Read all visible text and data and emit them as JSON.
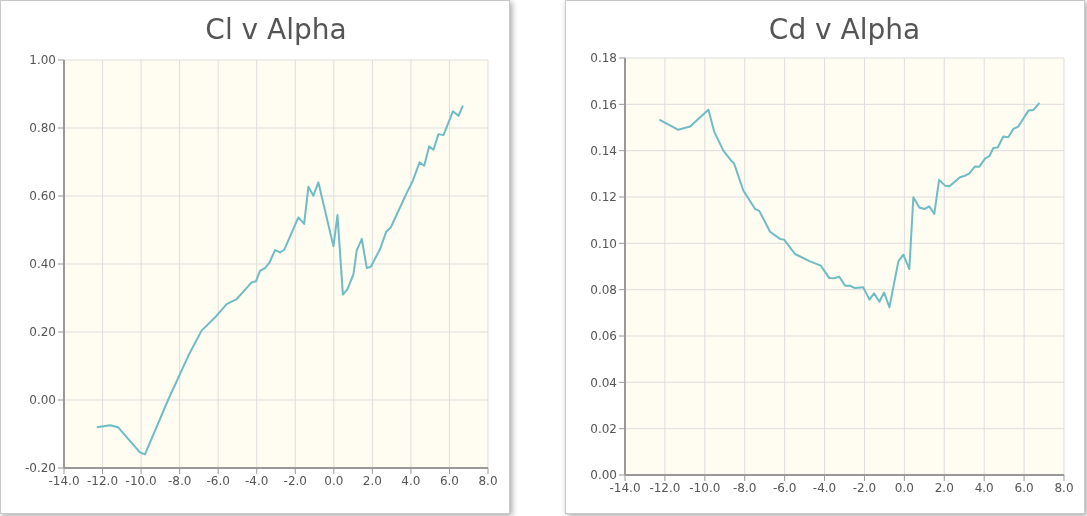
{
  "chart_data": [
    {
      "type": "line",
      "title": "Cl v Alpha",
      "color": "#6fbcc4",
      "marker": "none",
      "grid": true,
      "x": [
        -12.3,
        -11.6,
        -11.2,
        -10.06,
        -9.8,
        -8.6,
        -7.55,
        -6.86,
        -6.08,
        -5.56,
        -5.04,
        -4.26,
        -4.04,
        -3.83,
        -3.57,
        -3.35,
        -3.05,
        -2.79,
        -2.57,
        -1.84,
        -1.54,
        -1.32,
        -1.06,
        -0.8,
        -0.02,
        0.19,
        0.47,
        0.71,
        1.02,
        1.19,
        1.45,
        1.71,
        1.92,
        2.4,
        2.72,
        2.96,
        3.79,
        4.1,
        4.45,
        4.69,
        4.95,
        5.17,
        5.43,
        5.69,
        6.18,
        6.47,
        6.7
      ],
      "values": [
        -0.08,
        -0.074,
        -0.08,
        -0.154,
        -0.16,
        0.0,
        0.13,
        0.204,
        0.248,
        0.282,
        0.297,
        0.346,
        0.349,
        0.38,
        0.388,
        0.403,
        0.441,
        0.434,
        0.442,
        0.537,
        0.518,
        0.627,
        0.601,
        0.64,
        0.452,
        0.544,
        0.31,
        0.326,
        0.37,
        0.44,
        0.474,
        0.388,
        0.392,
        0.444,
        0.495,
        0.508,
        0.61,
        0.645,
        0.699,
        0.689,
        0.746,
        0.736,
        0.782,
        0.779,
        0.849,
        0.836,
        0.866
      ],
      "xlim": [
        -14,
        8
      ],
      "xticks": [
        {
          "value": -14,
          "label": "-14.0"
        },
        {
          "value": -12,
          "label": "-12.0"
        },
        {
          "value": -10,
          "label": "-10.0"
        },
        {
          "value": -8,
          "label": "-8.0"
        },
        {
          "value": -6,
          "label": "-6.0"
        },
        {
          "value": -4,
          "label": "-4.0"
        },
        {
          "value": -2,
          "label": "-2.0"
        },
        {
          "value": 0,
          "label": "0.0"
        },
        {
          "value": 2,
          "label": "2.0"
        },
        {
          "value": 4,
          "label": "4.0"
        },
        {
          "value": 6,
          "label": "6.0"
        },
        {
          "value": 8,
          "label": "8.0"
        }
      ],
      "ylim": [
        -0.2,
        1
      ],
      "yticks": [
        {
          "value": -0.2,
          "label": "-0.20"
        },
        {
          "value": 0,
          "label": "0.00"
        },
        {
          "value": 0.2,
          "label": "0.20"
        },
        {
          "value": 0.4,
          "label": "0.40"
        },
        {
          "value": 0.6,
          "label": "0.60"
        },
        {
          "value": 0.8,
          "label": "0.80"
        },
        {
          "value": 1,
          "label": "1.00"
        }
      ]
    },
    {
      "type": "line",
      "title": "Cd v Alpha",
      "color": "#6fbcc4",
      "marker": "none",
      "grid": true,
      "x": [
        -12.28,
        -11.33,
        -10.74,
        -9.82,
        -9.52,
        -9.07,
        -8.65,
        -8.54,
        -8.07,
        -7.48,
        -7.27,
        -6.73,
        -6.23,
        -6.03,
        -5.48,
        -4.73,
        -4.19,
        -3.76,
        -3.52,
        -3.26,
        -2.97,
        -2.72,
        -2.47,
        -2.06,
        -1.75,
        -1.52,
        -1.25,
        -1.02,
        -0.75,
        -0.3,
        -0.05,
        0.25,
        0.45,
        0.75,
        1.0,
        1.24,
        1.5,
        1.74,
        2.04,
        2.26,
        2.79,
        3.04,
        3.26,
        3.54,
        3.76,
        4.05,
        4.26,
        4.46,
        4.68,
        4.96,
        5.21,
        5.46,
        5.71,
        6.22,
        6.47,
        6.77
      ],
      "values": [
        0.1534,
        0.149,
        0.1504,
        0.1577,
        0.148,
        0.14,
        0.1354,
        0.1346,
        0.1228,
        0.1148,
        0.114,
        0.105,
        0.1019,
        0.1016,
        0.0954,
        0.0922,
        0.0904,
        0.085,
        0.0849,
        0.0856,
        0.0817,
        0.0817,
        0.0807,
        0.081,
        0.0757,
        0.0784,
        0.0748,
        0.0788,
        0.0724,
        0.0922,
        0.0951,
        0.0889,
        0.1199,
        0.1155,
        0.1148,
        0.116,
        0.1127,
        0.1274,
        0.1249,
        0.1246,
        0.1285,
        0.1292,
        0.1302,
        0.1332,
        0.1331,
        0.1367,
        0.1376,
        0.1412,
        0.1414,
        0.1461,
        0.1458,
        0.1494,
        0.1504,
        0.1573,
        0.1576,
        0.1606
      ],
      "xlim": [
        -14,
        8
      ],
      "xticks": [
        {
          "value": -14,
          "label": "-14.0"
        },
        {
          "value": -12,
          "label": "-12.0"
        },
        {
          "value": -10,
          "label": "-10.0"
        },
        {
          "value": -8,
          "label": "-8.0"
        },
        {
          "value": -6,
          "label": "-6.0"
        },
        {
          "value": -4,
          "label": "-4.0"
        },
        {
          "value": -2,
          "label": "-2.0"
        },
        {
          "value": 0,
          "label": "0.0"
        },
        {
          "value": 2,
          "label": "2.0"
        },
        {
          "value": 4,
          "label": "4.0"
        },
        {
          "value": 6,
          "label": "6.0"
        },
        {
          "value": 8,
          "label": "8.0"
        }
      ],
      "ylim": [
        0,
        0.18
      ],
      "yticks": [
        {
          "value": 0,
          "label": "0.00"
        },
        {
          "value": 0.02,
          "label": "0.02"
        },
        {
          "value": 0.04,
          "label": "0.04"
        },
        {
          "value": 0.06,
          "label": "0.06"
        },
        {
          "value": 0.08,
          "label": "0.08"
        },
        {
          "value": 0.1,
          "label": "0.10"
        },
        {
          "value": 0.12,
          "label": "0.12"
        },
        {
          "value": 0.14,
          "label": "0.14"
        },
        {
          "value": 0.16,
          "label": "0.16"
        },
        {
          "value": 0.18,
          "label": "0.18"
        }
      ]
    }
  ]
}
